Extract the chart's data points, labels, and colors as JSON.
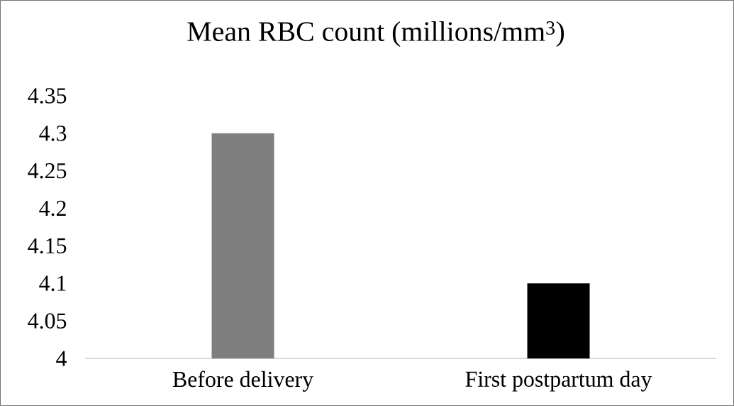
{
  "chart_data": {
    "type": "bar",
    "title": "Mean RBC count (millions/mm$^{3}$)",
    "categories": [
      "Before delivery",
      "First postpartum day"
    ],
    "values": [
      4.3,
      4.1
    ],
    "colors": [
      "#7f7f7f",
      "#000000"
    ],
    "ylim": [
      4,
      4.35
    ],
    "yticks": [
      4,
      4.05,
      4.1,
      4.15,
      4.2,
      4.25,
      4.3,
      4.35
    ],
    "grid": false
  }
}
